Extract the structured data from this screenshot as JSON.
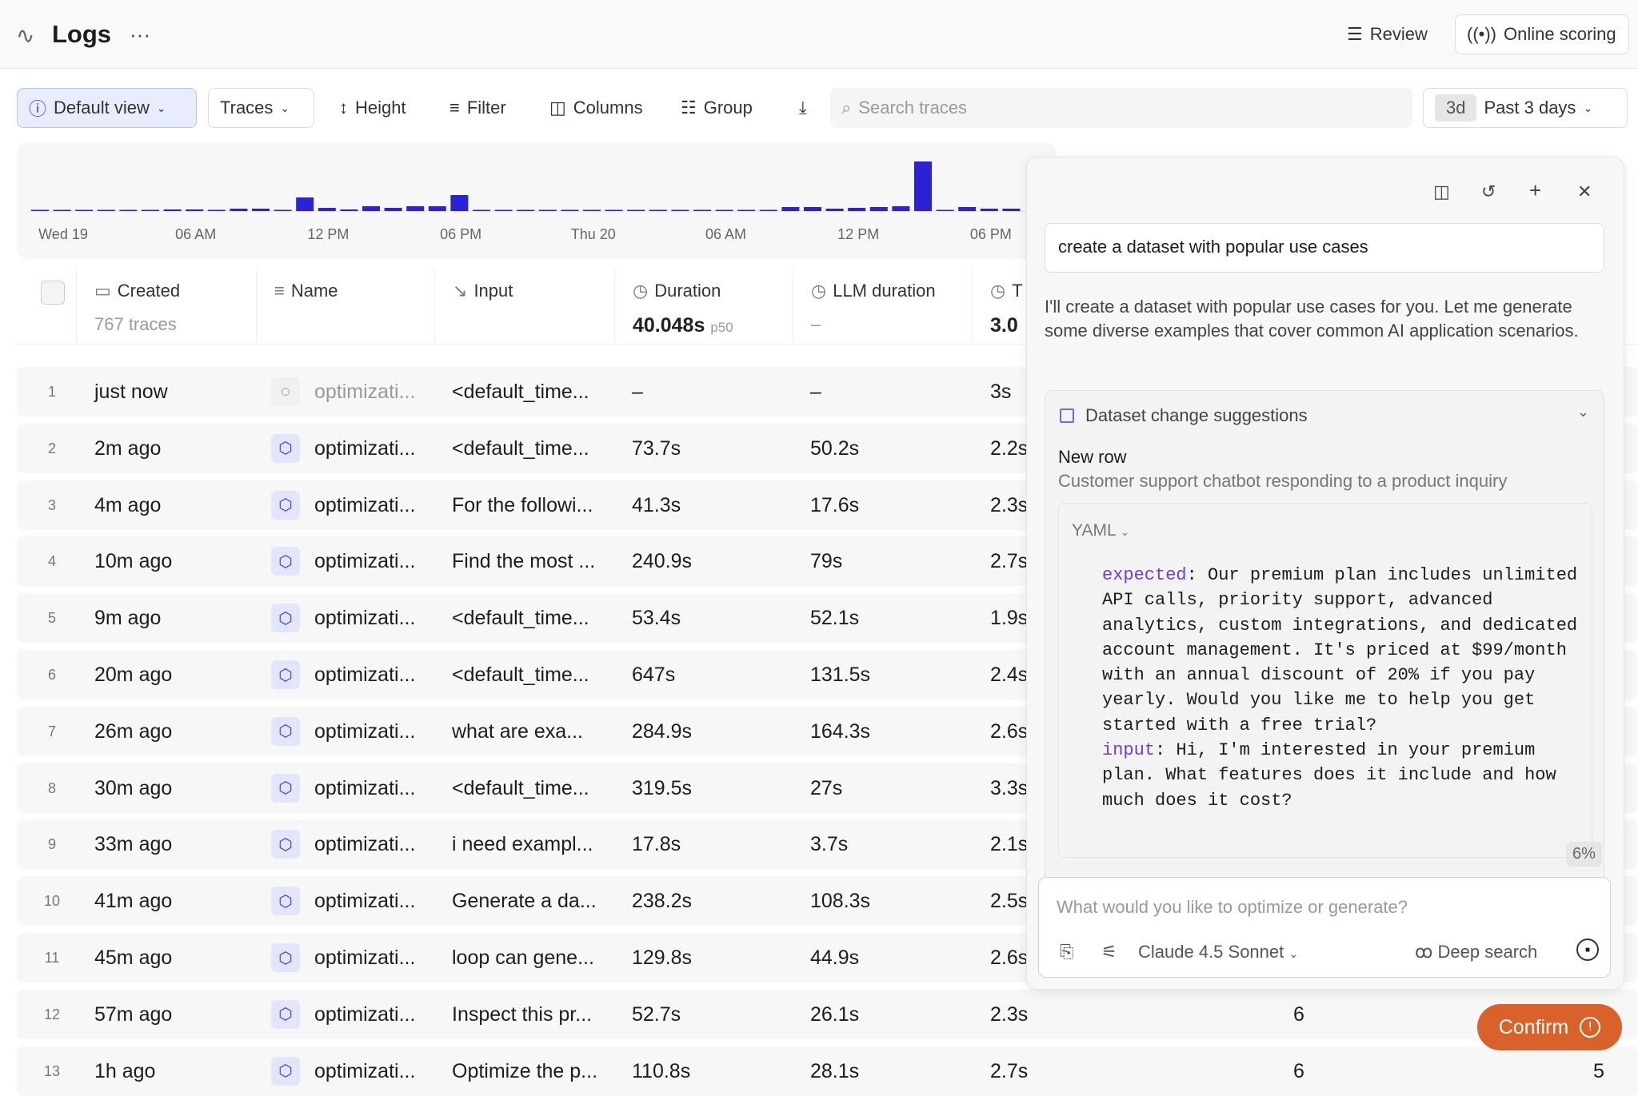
{
  "header": {
    "title": "Logs",
    "more": "···",
    "review": "Review",
    "online_scoring": "Online scoring"
  },
  "toolbar": {
    "default_view": "Default view",
    "traces": "Traces",
    "height": "Height",
    "filter": "Filter",
    "columns": "Columns",
    "group": "Group",
    "search_placeholder": "Search traces",
    "range_badge": "3d",
    "range": "Past 3 days"
  },
  "chart_data": {
    "type": "bar",
    "color": "#2b22d8",
    "x_ticks": [
      "Wed 19",
      "06 AM",
      "12 PM",
      "06 PM",
      "Thu 20",
      "06 AM",
      "12 PM",
      "06 PM"
    ],
    "x": [
      "Tue 23:00",
      "Wed 00:00",
      "01:00",
      "02:00",
      "03:00",
      "04:00",
      "05:00",
      "06:00",
      "07:00",
      "08:00",
      "09:00",
      "10:00",
      "11:00",
      "12:00",
      "13:00",
      "14:00",
      "15:00",
      "16:00",
      "17:00",
      "18:00",
      "19:00",
      "20:00",
      "21:00",
      "22:00",
      "23:00",
      "Thu 00:00",
      "01:00",
      "02:00",
      "03:00",
      "04:00",
      "05:00",
      "06:00",
      "07:00",
      "08:00",
      "09:00",
      "10:00",
      "11:00",
      "12:00",
      "13:00",
      "14:00",
      "15:00",
      "16:00",
      "17:00",
      "18:00",
      "19:00"
    ],
    "values": [
      1,
      1,
      1,
      1,
      1,
      1,
      2,
      2,
      1,
      3,
      3,
      1,
      17,
      4,
      2,
      6,
      4,
      6,
      6,
      20,
      1,
      1,
      0,
      0,
      1,
      1,
      0,
      0,
      0,
      0,
      0,
      1,
      1,
      0,
      5,
      5,
      3,
      4,
      5,
      6,
      62,
      1,
      5,
      3,
      3
    ]
  },
  "table": {
    "columns": [
      {
        "label": "Created",
        "sub": "767 traces"
      },
      {
        "label": "Name",
        "sub": ""
      },
      {
        "label": "Input",
        "sub": ""
      },
      {
        "label": "Duration",
        "sub": "40.048s",
        "sub_tag": "p50"
      },
      {
        "label": "LLM duration",
        "sub": "–"
      },
      {
        "label": "T",
        "sub": "3.0"
      }
    ],
    "rows": [
      [
        "1",
        "just now",
        "optimizati...",
        "<default_time...",
        "–",
        "–",
        "3s",
        "",
        ""
      ],
      [
        "2",
        "2m ago",
        "optimizati...",
        "<default_time...",
        "73.7s",
        "50.2s",
        "2.2s",
        "",
        ""
      ],
      [
        "3",
        "4m ago",
        "optimizati...",
        "For the followi...",
        "41.3s",
        "17.6s",
        "2.3s",
        "",
        ""
      ],
      [
        "4",
        "10m ago",
        "optimizati...",
        "Find the most ...",
        "240.9s",
        "79s",
        "2.7s",
        "",
        ""
      ],
      [
        "5",
        "9m ago",
        "optimizati...",
        "<default_time...",
        "53.4s",
        "52.1s",
        "1.9s",
        "",
        ""
      ],
      [
        "6",
        "20m ago",
        "optimizati...",
        "<default_time...",
        "647s",
        "131.5s",
        "2.4s",
        "",
        ""
      ],
      [
        "7",
        "26m ago",
        "optimizati...",
        "what are exa...",
        "284.9s",
        "164.3s",
        "2.6s",
        "",
        ""
      ],
      [
        "8",
        "30m ago",
        "optimizati...",
        "<default_time...",
        "319.5s",
        "27s",
        "3.3s",
        "",
        ""
      ],
      [
        "9",
        "33m ago",
        "optimizati...",
        "i need exampl...",
        "17.8s",
        "3.7s",
        "2.1s",
        "",
        ""
      ],
      [
        "10",
        "41m ago",
        "optimizati...",
        "Generate a da...",
        "238.2s",
        "108.3s",
        "2.5s",
        "",
        ""
      ],
      [
        "11",
        "45m ago",
        "optimizati...",
        "loop can gene...",
        "129.8s",
        "44.9s",
        "2.6s",
        "",
        ""
      ],
      [
        "12",
        "57m ago",
        "optimizati...",
        "Inspect this pr...",
        "52.7s",
        "26.1s",
        "2.3s",
        "6",
        ""
      ],
      [
        "13",
        "1h ago",
        "optimizati...",
        "Optimize the p...",
        "110.8s",
        "28.1s",
        "2.7s",
        "6",
        "5"
      ]
    ]
  },
  "panel": {
    "prompt": "create a dataset with popular use cases",
    "response": "I'll create a dataset with popular use cases for you. Let me generate some diverse examples that cover common AI application scenarios.",
    "suggestion_title": "Dataset change suggestions",
    "new_row": "New row",
    "new_row_desc": "Customer support chatbot responding to a product inquiry",
    "format": "YAML",
    "expected_key": "expected",
    "expected_val": "Our premium plan includes unlimited API calls, priority support, advanced analytics, custom integrations, and dedicated account management. It's priced at $99/month with an annual discount of 20% if you pay yearly. Would you like me to help you get started with a free trial?",
    "input_key": "input",
    "input_val": "Hi, I'm interested in your premium plan. What features does it include and how much does it cost?",
    "scroll_pct": "6%",
    "composer_placeholder": "What would you like to optimize or generate?",
    "model": "Claude 4.5 Sonnet",
    "deep_search": "Deep search"
  },
  "confirm": "Confirm"
}
